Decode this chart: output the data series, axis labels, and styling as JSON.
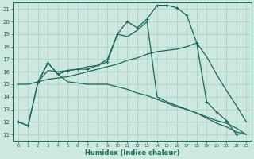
{
  "xlabel": "Humidex (Indice chaleur)",
  "xlim": [
    -0.5,
    23.5
  ],
  "ylim": [
    10.5,
    21.5
  ],
  "xticks": [
    0,
    1,
    2,
    3,
    4,
    5,
    6,
    7,
    8,
    9,
    10,
    11,
    12,
    13,
    14,
    15,
    16,
    17,
    18,
    19,
    20,
    21,
    22,
    23
  ],
  "yticks": [
    11,
    12,
    13,
    14,
    15,
    16,
    17,
    18,
    19,
    20,
    21
  ],
  "bg_color": "#cce8e0",
  "grid_color": "#aacccc",
  "line_color": "#1a6655",
  "line1_x": [
    0,
    1,
    2,
    3,
    4,
    5,
    6,
    7,
    8,
    9,
    10,
    11,
    12,
    13,
    14,
    15,
    16,
    17,
    18,
    19,
    20,
    21,
    22
  ],
  "line1_y": [
    12.0,
    11.7,
    15.2,
    16.7,
    15.8,
    16.1,
    16.2,
    16.2,
    16.5,
    16.8,
    19.0,
    20.0,
    19.5,
    20.2,
    21.3,
    21.3,
    21.1,
    20.5,
    18.3,
    13.6,
    12.8,
    12.1,
    11.0
  ],
  "line2_x": [
    2,
    3,
    4,
    5,
    6,
    7,
    8,
    9,
    10,
    11,
    12,
    13,
    14,
    15,
    16,
    17,
    18,
    19,
    20,
    21,
    22,
    23
  ],
  "line2_y": [
    15.2,
    16.7,
    15.8,
    15.2,
    15.1,
    15.0,
    15.0,
    15.0,
    14.8,
    14.6,
    14.3,
    14.1,
    13.8,
    13.5,
    13.2,
    13.0,
    12.7,
    12.4,
    12.1,
    11.9,
    11.5,
    11.0
  ],
  "line3_x": [
    0,
    1,
    2,
    3,
    4,
    5,
    6,
    7,
    8,
    9,
    10,
    11,
    12,
    13,
    14,
    15,
    16,
    17,
    18,
    19,
    20,
    21,
    22,
    23
  ],
  "line3_y": [
    15.0,
    15.0,
    15.2,
    15.4,
    15.5,
    15.6,
    15.8,
    16.0,
    16.2,
    16.4,
    16.6,
    16.9,
    17.1,
    17.4,
    17.6,
    17.7,
    17.8,
    18.0,
    18.3,
    17.2,
    15.8,
    14.5,
    13.3,
    12.0
  ],
  "line4_x": [
    0,
    1,
    2,
    3,
    4,
    5,
    6,
    7,
    8,
    9,
    10,
    11,
    12,
    13,
    14,
    15,
    16,
    17,
    18,
    19,
    20,
    21,
    22,
    23
  ],
  "line4_y": [
    12.0,
    11.7,
    15.2,
    16.1,
    16.0,
    16.1,
    16.2,
    16.4,
    16.5,
    17.0,
    19.0,
    18.8,
    19.3,
    20.0,
    14.0,
    13.6,
    13.3,
    13.0,
    12.7,
    12.3,
    11.9,
    11.6,
    11.2,
    11.0
  ]
}
